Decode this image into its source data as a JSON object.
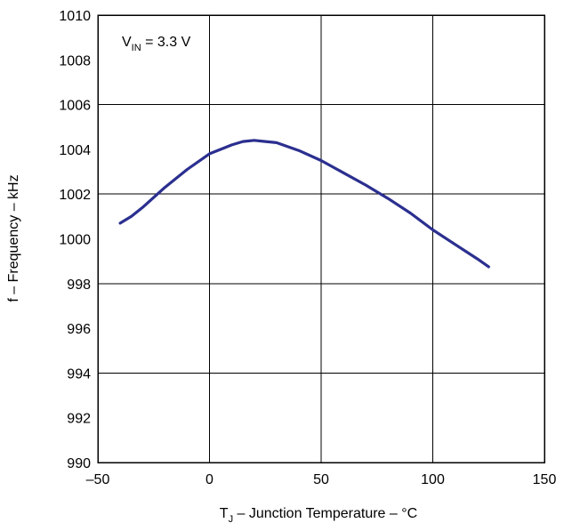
{
  "chart_data": {
    "type": "line",
    "xlabel_parts": {
      "main": "T",
      "sub": "J",
      "rest": " – Junction Temperature – °C"
    },
    "ylabel": "f – Frequency – kHz",
    "annotation": {
      "main": "V",
      "sub": "IN",
      "rest": " = 3.3 V"
    },
    "xlim": [
      -50,
      150
    ],
    "ylim": [
      990,
      1010
    ],
    "xticks": [
      -50,
      0,
      50,
      100,
      150
    ],
    "xtick_labels": [
      "–50",
      "0",
      "50",
      "100",
      "150"
    ],
    "yticks": [
      990,
      992,
      994,
      996,
      998,
      1000,
      1002,
      1004,
      1006,
      1008,
      1010
    ],
    "ytick_labels": [
      "990",
      "992",
      "994",
      "996",
      "998",
      "1000",
      "1002",
      "1004",
      "1006",
      "1008",
      "1010"
    ],
    "grid": true,
    "line_color": "#2b2f8f",
    "series": [
      {
        "x": [
          -40,
          -35,
          -30,
          -20,
          -10,
          0,
          10,
          15,
          20,
          25,
          30,
          40,
          50,
          60,
          70,
          80,
          90,
          100,
          110,
          120,
          125
        ],
        "y": [
          1000.7,
          1001.0,
          1001.4,
          1002.3,
          1003.1,
          1003.8,
          1004.2,
          1004.35,
          1004.4,
          1004.35,
          1004.3,
          1003.95,
          1003.5,
          1002.95,
          1002.4,
          1001.8,
          1001.15,
          1000.4,
          999.75,
          999.1,
          998.75
        ]
      }
    ]
  }
}
